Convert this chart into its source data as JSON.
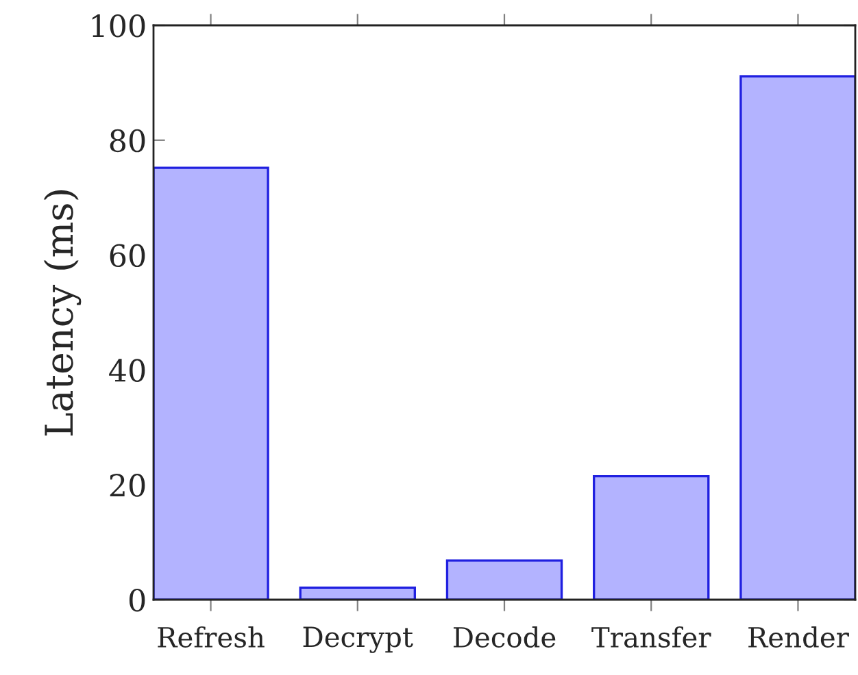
{
  "chart_data": {
    "type": "bar",
    "ylabel": "Latency (ms)",
    "categories": [
      "Refresh",
      "Decrypt",
      "Decode",
      "Transfer",
      "Render"
    ],
    "values": [
      75.2,
      2.1,
      6.8,
      21.5,
      91.1
    ],
    "color": "#b3b3ff",
    "ylim": [
      0,
      100
    ],
    "yticks": [
      0,
      20,
      40,
      60,
      80,
      100
    ],
    "grid": false,
    "legend": false
  }
}
